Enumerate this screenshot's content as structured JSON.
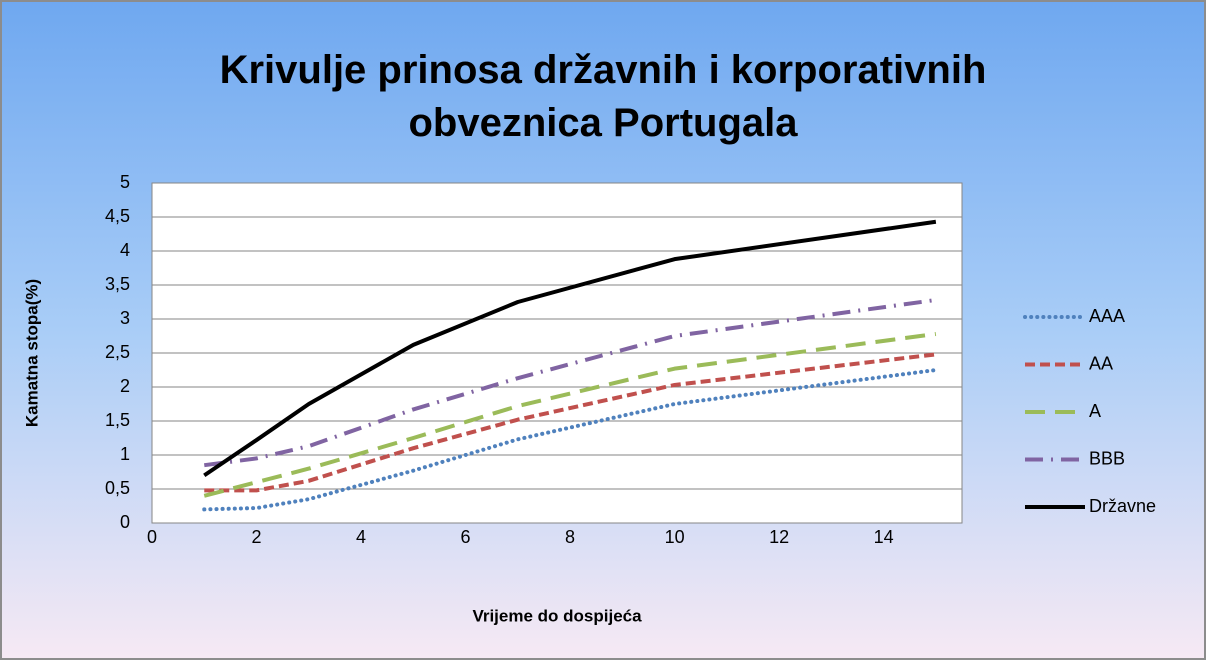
{
  "chart_data": {
    "type": "line",
    "title": "Krivulje prinosa državnih i korporativnih obveznica Portugala",
    "x_label": "Vrijeme do dospijeća",
    "y_label": "Kamatna stopa(%)",
    "x": [
      1,
      2,
      3,
      5,
      7,
      10,
      15
    ],
    "series": [
      {
        "name": "AAA",
        "color": "#4f81bd",
        "style": "dot",
        "values": [
          0.2,
          0.22,
          0.35,
          0.77,
          1.23,
          1.75,
          2.25
        ]
      },
      {
        "name": "AA",
        "color": "#c0504d",
        "style": "dash",
        "values": [
          0.48,
          0.48,
          0.62,
          1.1,
          1.52,
          2.03,
          2.48
        ]
      },
      {
        "name": "A",
        "color": "#9bbb59",
        "style": "longdash",
        "values": [
          0.4,
          0.6,
          0.8,
          1.25,
          1.72,
          2.27,
          2.78
        ]
      },
      {
        "name": "BBB",
        "color": "#8064a2",
        "style": "dashdot",
        "values": [
          0.85,
          0.95,
          1.13,
          1.67,
          2.13,
          2.75,
          3.28
        ]
      },
      {
        "name": "Državne",
        "color": "#000000",
        "style": "solid",
        "values": [
          0.7,
          1.22,
          1.75,
          2.62,
          3.25,
          3.88,
          4.43
        ]
      }
    ],
    "xlim": [
      0,
      15.5
    ],
    "xticks": [
      0,
      2,
      4,
      6,
      8,
      10,
      12,
      14
    ],
    "ylim": [
      0,
      5
    ],
    "yticks": [
      0,
      {
        "value": 0.5,
        "label": "0,5"
      },
      1,
      {
        "value": 1.5,
        "label": "1,5"
      },
      2,
      {
        "value": 2.5,
        "label": "2,5"
      },
      3,
      {
        "value": 3.5,
        "label": "3,5"
      },
      4,
      {
        "value": 4.5,
        "label": "4,5"
      },
      5
    ],
    "grid": true,
    "legend": "right"
  }
}
